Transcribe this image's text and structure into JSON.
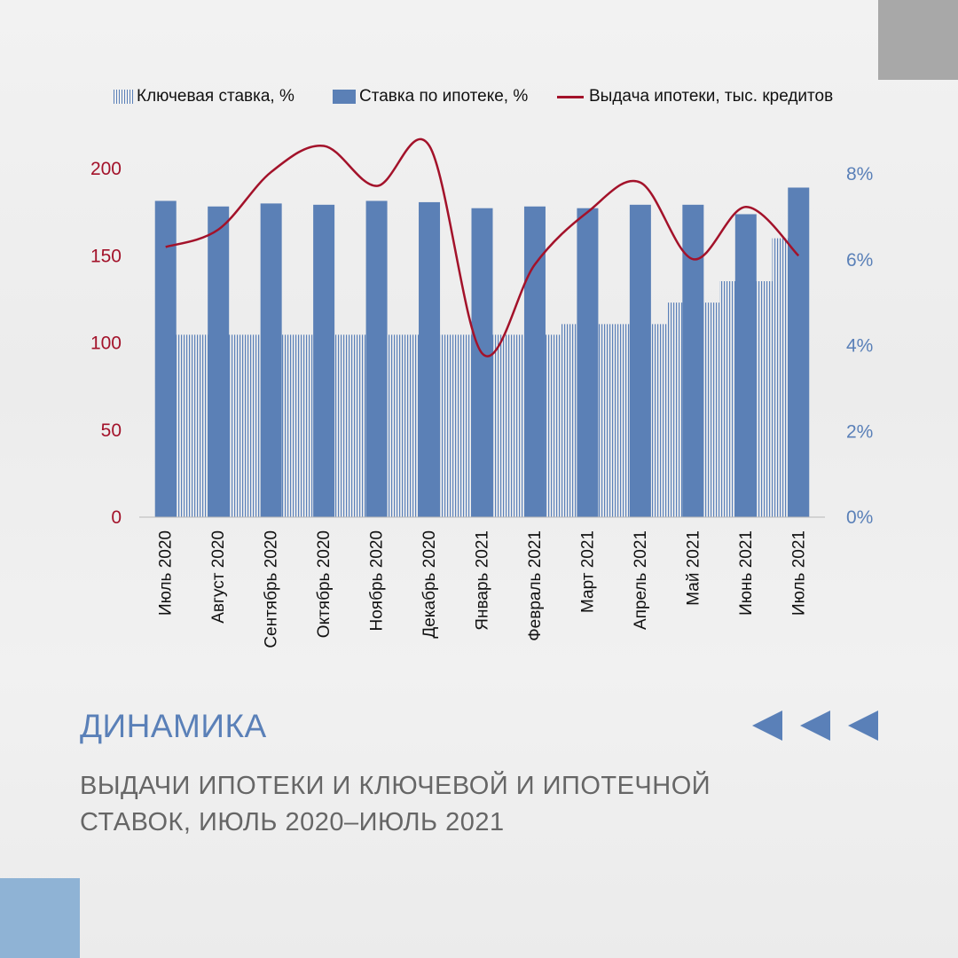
{
  "legend": {
    "key_rate": "Ключевая ставка, %",
    "mortgage_rate": "Ставка по ипотеке, %",
    "issuance": "Выдача ипотеки, тыс. кредитов"
  },
  "title": "ДИНАМИКА",
  "subtitle_line1": "ВЫДАЧИ ИПОТЕКИ И КЛЮЧЕВОЙ И ИПОТЕЧНОЙ",
  "subtitle_line2": "СТАВОК, ИЮЛЬ 2020–ИЮЛЬ 2021",
  "colors": {
    "bar": "#5b80b6",
    "line": "#a3122a",
    "left_axis": "#a3122a",
    "right_axis": "#5a80b8"
  },
  "chart_data": {
    "type": "bar",
    "categories": [
      "Июль 2020",
      "Август 2020",
      "Сентябрь 2020",
      "Октябрь 2020",
      "Ноябрь 2020",
      "Декабрь 2020",
      "Январь 2021",
      "Февраль 2021",
      "Март 2021",
      "Апрель 2021",
      "Май 2021",
      "Июнь 2021",
      "Июль 2021"
    ],
    "series": [
      {
        "name": "Ключевая ставка, %",
        "axis": "right",
        "style": "hatched-area",
        "values": [
          4.25,
          4.25,
          4.25,
          4.25,
          4.25,
          4.25,
          4.25,
          4.25,
          4.5,
          4.5,
          5.0,
          5.5,
          6.5
        ]
      },
      {
        "name": "Ставка по ипотеке, %",
        "axis": "right",
        "style": "bar",
        "values": [
          7.37,
          7.24,
          7.31,
          7.28,
          7.37,
          7.34,
          7.2,
          7.24,
          7.2,
          7.28,
          7.28,
          7.06,
          7.68
        ]
      },
      {
        "name": "Выдача ипотеки, тыс. кредитов",
        "axis": "left",
        "style": "line",
        "values": [
          155,
          165,
          198,
          213,
          190,
          213,
          94,
          145,
          175,
          192,
          148,
          178,
          150
        ]
      }
    ],
    "y_left": {
      "min": 0,
      "max": 200,
      "ticks": [
        0,
        50,
        100,
        150,
        200
      ]
    },
    "y_right": {
      "min": 0,
      "max": 8,
      "ticks": [
        "0%",
        "2%",
        "4%",
        "6%",
        "8%"
      ]
    },
    "grid": false,
    "legend_position": "top"
  }
}
